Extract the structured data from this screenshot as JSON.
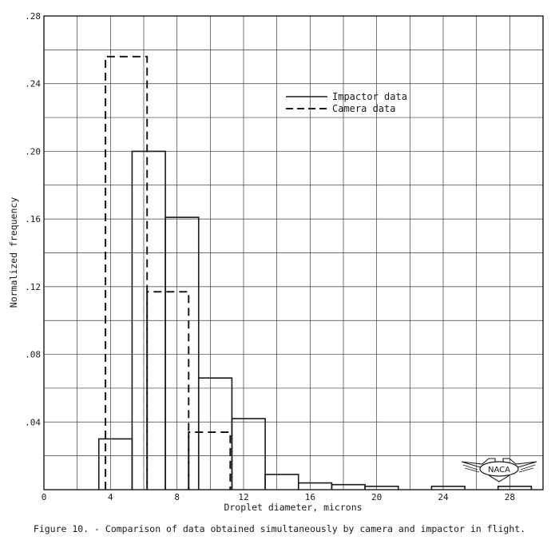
{
  "chart_data": {
    "type": "bar",
    "title": "",
    "xlabel": "Droplet diameter, microns",
    "ylabel": "Normalized frequency",
    "xlim": [
      0,
      30
    ],
    "ylim": [
      0,
      0.28
    ],
    "grid": true,
    "legend_placement": "top-right",
    "x_ticks": [
      "0",
      "4",
      "8",
      "12",
      "16",
      "20",
      "24",
      "28"
    ],
    "x_tick_values": [
      0,
      4,
      8,
      12,
      16,
      20,
      24,
      28
    ],
    "y_ticks": [
      ".04",
      ".08",
      ".12",
      ".16",
      ".20",
      ".24",
      ".28"
    ],
    "y_tick_values": [
      0.04,
      0.08,
      0.12,
      0.16,
      0.2,
      0.24,
      0.28
    ],
    "series": [
      {
        "name": "Impactor data",
        "style": "solid",
        "bins": [
          {
            "x0": 3.3,
            "x1": 5.3,
            "value": 0.03
          },
          {
            "x0": 5.3,
            "x1": 7.3,
            "value": 0.2
          },
          {
            "x0": 7.3,
            "x1": 9.3,
            "value": 0.161
          },
          {
            "x0": 9.3,
            "x1": 11.3,
            "value": 0.066
          },
          {
            "x0": 11.3,
            "x1": 13.3,
            "value": 0.042
          },
          {
            "x0": 13.3,
            "x1": 15.3,
            "value": 0.009
          },
          {
            "x0": 15.3,
            "x1": 17.3,
            "value": 0.004
          },
          {
            "x0": 17.3,
            "x1": 19.3,
            "value": 0.003
          },
          {
            "x0": 19.3,
            "x1": 21.3,
            "value": 0.002
          },
          {
            "x0": 23.3,
            "x1": 25.3,
            "value": 0.002
          },
          {
            "x0": 27.3,
            "x1": 29.3,
            "value": 0.002
          }
        ]
      },
      {
        "name": "Camera data",
        "style": "dashed",
        "bins": [
          {
            "x0": 3.7,
            "x1": 6.2,
            "value": 0.256
          },
          {
            "x0": 6.2,
            "x1": 8.7,
            "value": 0.117
          },
          {
            "x0": 8.7,
            "x1": 11.2,
            "value": 0.034
          }
        ]
      }
    ]
  },
  "caption": "Figure 10. - Comparison of data obtained simultaneously by camera and impactor in flight.",
  "logo_text": "NACA"
}
